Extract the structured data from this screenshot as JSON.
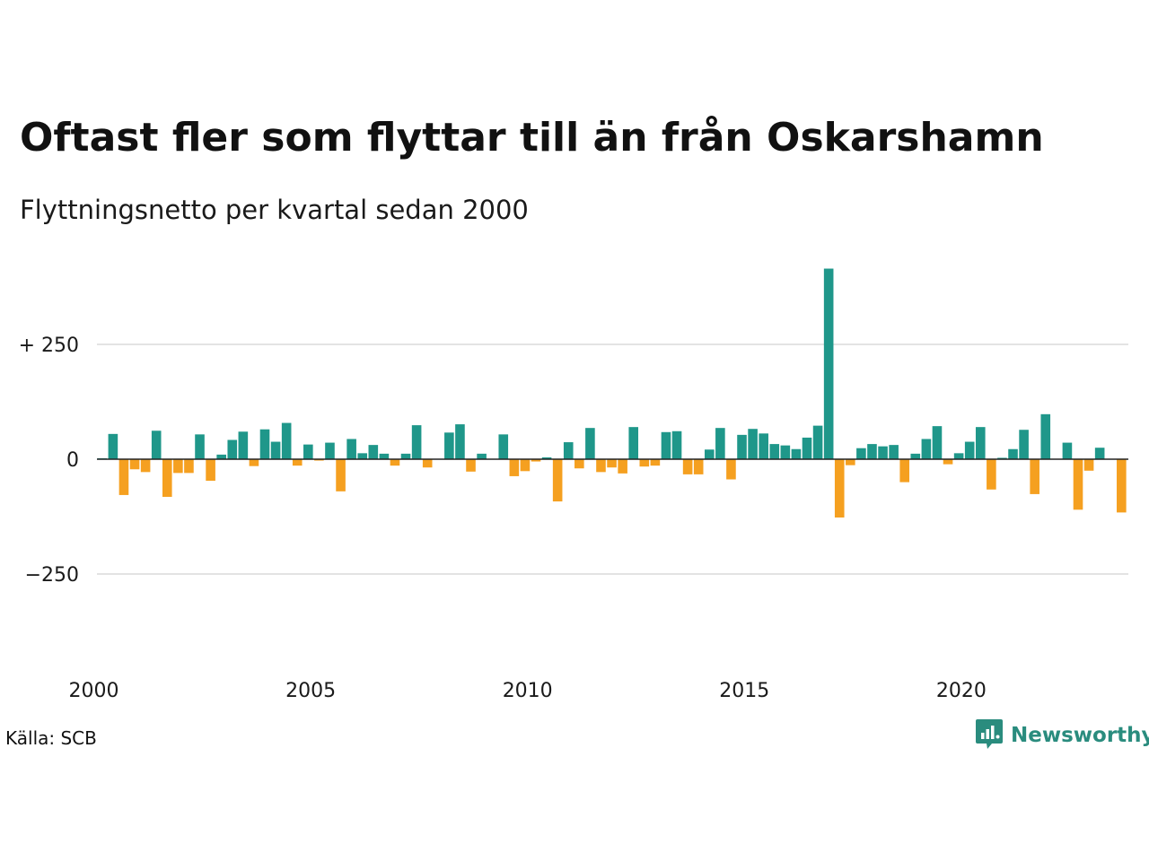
{
  "title": "Oftast fler som flyttar till än från Oskarshamn",
  "subtitle": "Flyttningsnetto per kvartal sedan 2000",
  "source": "Källa: SCB",
  "brand": "Newsworthy",
  "colors": {
    "positive": "#1f978a",
    "negative": "#f5a020",
    "grid": "#e3e3e3",
    "zero_line": "#222222",
    "brand": "#2a8c7e"
  },
  "icons": {
    "logo": "newsworthy-chart-bubble-icon"
  },
  "chart_data": {
    "type": "bar",
    "grid": true,
    "x_start": "2000 Q1",
    "ylim": [
      -410,
      415
    ],
    "y_ticks": [
      {
        "value": 250,
        "label": "+ 250"
      },
      {
        "value": 0,
        "label": "0"
      },
      {
        "value": -250,
        "label": "−250"
      }
    ],
    "x_ticks": [
      {
        "value": 2000,
        "label": "2000"
      },
      {
        "value": 2005,
        "label": "2005"
      },
      {
        "value": 2010,
        "label": "2010"
      },
      {
        "value": 2015,
        "label": "2015"
      },
      {
        "value": 2020,
        "label": "2020"
      }
    ],
    "categories": [
      "2000 Q1",
      "2000 Q2",
      "2000 Q3",
      "2000 Q4",
      "2001 Q1",
      "2001 Q2",
      "2001 Q3",
      "2001 Q4",
      "2002 Q1",
      "2002 Q2",
      "2002 Q3",
      "2002 Q4",
      "2003 Q1",
      "2003 Q2",
      "2003 Q3",
      "2003 Q4",
      "2004 Q1",
      "2004 Q2",
      "2004 Q3",
      "2004 Q4",
      "2005 Q1",
      "2005 Q2",
      "2005 Q3",
      "2005 Q4",
      "2006 Q1",
      "2006 Q2",
      "2006 Q3",
      "2006 Q4",
      "2007 Q1",
      "2007 Q2",
      "2007 Q3",
      "2007 Q4",
      "2008 Q1",
      "2008 Q2",
      "2008 Q3",
      "2008 Q4",
      "2009 Q1",
      "2009 Q2",
      "2009 Q3",
      "2009 Q4",
      "2010 Q1",
      "2010 Q2",
      "2010 Q3",
      "2010 Q4",
      "2011 Q1",
      "2011 Q2",
      "2011 Q3",
      "2011 Q4",
      "2012 Q1",
      "2012 Q2",
      "2012 Q3",
      "2012 Q4",
      "2013 Q1",
      "2013 Q2",
      "2013 Q3",
      "2013 Q4",
      "2014 Q1",
      "2014 Q2",
      "2014 Q3",
      "2014 Q4",
      "2015 Q1",
      "2015 Q2",
      "2015 Q3",
      "2015 Q4",
      "2016 Q1",
      "2016 Q2",
      "2016 Q3",
      "2016 Q4",
      "2017 Q1",
      "2017 Q2",
      "2017 Q3",
      "2017 Q4",
      "2018 Q1",
      "2018 Q2",
      "2018 Q3",
      "2018 Q4",
      "2019 Q1",
      "2019 Q2",
      "2019 Q3",
      "2019 Q4",
      "2020 Q1",
      "2020 Q2",
      "2020 Q3",
      "2020 Q4",
      "2021 Q1",
      "2021 Q2",
      "2021 Q3",
      "2021 Q4",
      "2022 Q1",
      "2022 Q2",
      "2022 Q3",
      "2022 Q4",
      "2023 Q1",
      "2023 Q2",
      "2023 Q3",
      "2023 Q4"
    ],
    "values": [
      2,
      55,
      -78,
      -22,
      -28,
      62,
      -82,
      -30,
      -30,
      54,
      -47,
      10,
      42,
      60,
      -15,
      65,
      38,
      79,
      -14,
      32,
      -3,
      36,
      -70,
      44,
      13,
      31,
      12,
      -14,
      12,
      74,
      -18,
      0,
      58,
      76,
      -27,
      12,
      0,
      54,
      -37,
      -26,
      -5,
      4,
      -92,
      37,
      -20,
      68,
      -28,
      -18,
      -31,
      70,
      -16,
      -14,
      59,
      61,
      -33,
      -33,
      21,
      68,
      -44,
      53,
      66,
      56,
      33,
      30,
      22,
      47,
      73,
      415,
      -127,
      -13,
      24,
      33,
      28,
      31,
      -50,
      12,
      44,
      72,
      -11,
      13,
      38,
      70,
      -66,
      3,
      22,
      64,
      -76,
      98,
      0,
      36,
      -110,
      -25,
      25,
      0,
      -116,
      0
    ]
  }
}
